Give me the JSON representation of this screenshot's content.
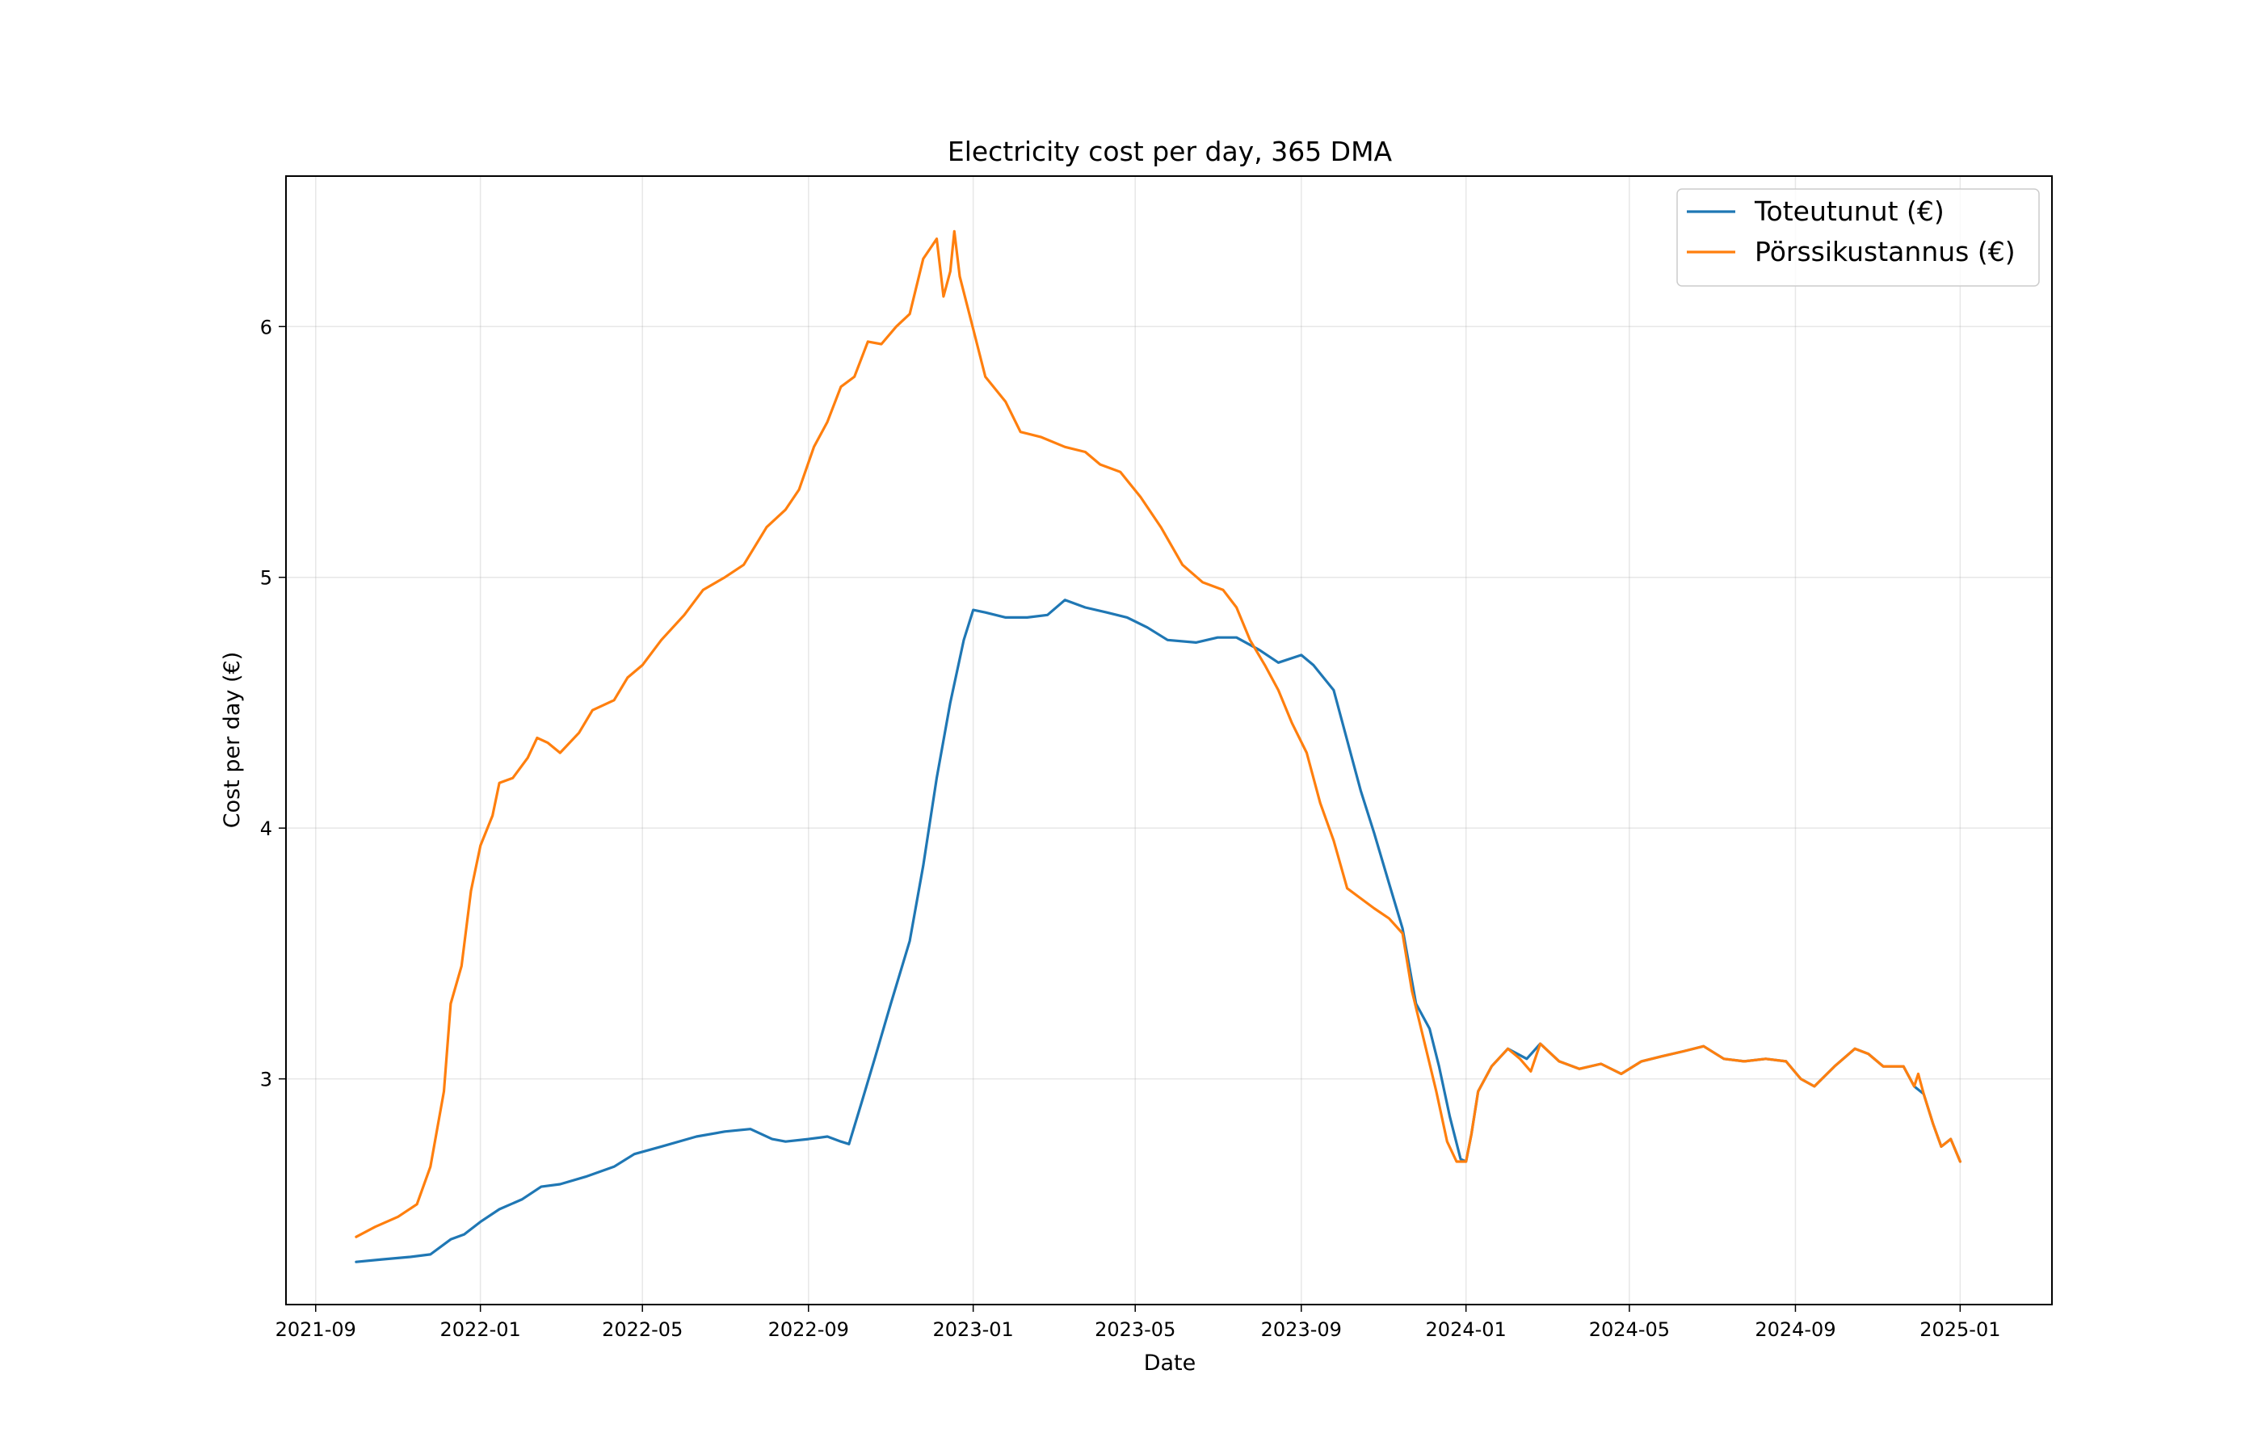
{
  "chart_data": {
    "type": "line",
    "title": "Electricity cost per day, 365 DMA",
    "xlabel": "Date",
    "ylabel": "Cost per day (€)",
    "x_ticks": [
      "2021-09",
      "2022-01",
      "2022-05",
      "2022-09",
      "2023-01",
      "2023-05",
      "2023-09",
      "2024-01",
      "2024-05",
      "2024-09",
      "2025-01"
    ],
    "y_ticks": [
      3,
      4,
      5,
      6
    ],
    "xlim": [
      "2021-08-10",
      "2025-03-10"
    ],
    "ylim": [
      2.1,
      6.6
    ],
    "grid": true,
    "legend_position": "top-right",
    "series": [
      {
        "name": "Toteutunut (€)",
        "color": "#1f77b4",
        "points": [
          [
            "2021-10-01",
            2.27
          ],
          [
            "2021-10-20",
            2.28
          ],
          [
            "2021-11-10",
            2.29
          ],
          [
            "2021-11-25",
            2.3
          ],
          [
            "2021-12-10",
            2.36
          ],
          [
            "2021-12-20",
            2.38
          ],
          [
            "2022-01-01",
            2.43
          ],
          [
            "2022-01-15",
            2.48
          ],
          [
            "2022-02-01",
            2.52
          ],
          [
            "2022-02-15",
            2.57
          ],
          [
            "2022-03-01",
            2.58
          ],
          [
            "2022-03-20",
            2.61
          ],
          [
            "2022-04-10",
            2.65
          ],
          [
            "2022-04-25",
            2.7
          ],
          [
            "2022-05-15",
            2.73
          ],
          [
            "2022-06-10",
            2.77
          ],
          [
            "2022-07-01",
            2.79
          ],
          [
            "2022-07-20",
            2.8
          ],
          [
            "2022-08-05",
            2.76
          ],
          [
            "2022-08-15",
            2.75
          ],
          [
            "2022-09-01",
            2.76
          ],
          [
            "2022-09-15",
            2.77
          ],
          [
            "2022-09-25",
            2.75
          ],
          [
            "2022-10-01",
            2.74
          ],
          [
            "2022-10-10",
            2.9
          ],
          [
            "2022-10-20",
            3.08
          ],
          [
            "2022-11-01",
            3.3
          ],
          [
            "2022-11-15",
            3.55
          ],
          [
            "2022-11-25",
            3.85
          ],
          [
            "2022-12-05",
            4.2
          ],
          [
            "2022-12-15",
            4.5
          ],
          [
            "2022-12-25",
            4.75
          ],
          [
            "2023-01-01",
            4.87
          ],
          [
            "2023-01-10",
            4.86
          ],
          [
            "2023-01-25",
            4.84
          ],
          [
            "2023-02-10",
            4.84
          ],
          [
            "2023-02-25",
            4.85
          ],
          [
            "2023-03-10",
            4.91
          ],
          [
            "2023-03-25",
            4.88
          ],
          [
            "2023-04-10",
            4.86
          ],
          [
            "2023-04-25",
            4.84
          ],
          [
            "2023-05-10",
            4.8
          ],
          [
            "2023-05-25",
            4.75
          ],
          [
            "2023-06-15",
            4.74
          ],
          [
            "2023-07-01",
            4.76
          ],
          [
            "2023-07-15",
            4.76
          ],
          [
            "2023-08-01",
            4.71
          ],
          [
            "2023-08-15",
            4.66
          ],
          [
            "2023-09-01",
            4.69
          ],
          [
            "2023-09-10",
            4.65
          ],
          [
            "2023-09-25",
            4.55
          ],
          [
            "2023-10-05",
            4.35
          ],
          [
            "2023-10-15",
            4.15
          ],
          [
            "2023-10-25",
            3.98
          ],
          [
            "2023-11-05",
            3.78
          ],
          [
            "2023-11-15",
            3.6
          ],
          [
            "2023-11-25",
            3.3
          ],
          [
            "2023-12-05",
            3.2
          ],
          [
            "2023-12-12",
            3.05
          ],
          [
            "2023-12-20",
            2.85
          ],
          [
            "2023-12-28",
            2.68
          ],
          [
            "2024-01-01",
            2.67
          ],
          [
            "2024-01-05",
            2.78
          ],
          [
            "2024-01-10",
            2.95
          ],
          [
            "2024-01-20",
            3.05
          ],
          [
            "2024-02-01",
            3.12
          ],
          [
            "2024-02-15",
            3.08
          ],
          [
            "2024-02-25",
            3.14
          ],
          [
            "2024-03-10",
            3.07
          ],
          [
            "2024-03-25",
            3.04
          ],
          [
            "2024-04-10",
            3.06
          ],
          [
            "2024-04-25",
            3.02
          ],
          [
            "2024-05-10",
            3.07
          ],
          [
            "2024-05-25",
            3.09
          ],
          [
            "2024-06-10",
            3.11
          ],
          [
            "2024-06-25",
            3.13
          ],
          [
            "2024-07-10",
            3.08
          ],
          [
            "2024-07-25",
            3.07
          ],
          [
            "2024-08-10",
            3.08
          ],
          [
            "2024-08-25",
            3.07
          ],
          [
            "2024-09-05",
            3.0
          ],
          [
            "2024-09-15",
            2.97
          ],
          [
            "2024-09-30",
            3.05
          ],
          [
            "2024-10-15",
            3.12
          ],
          [
            "2024-10-25",
            3.1
          ],
          [
            "2024-11-05",
            3.05
          ],
          [
            "2024-11-20",
            3.05
          ],
          [
            "2024-11-28",
            2.97
          ],
          [
            "2024-12-05",
            2.94
          ],
          [
            "2024-12-12",
            2.82
          ],
          [
            "2024-12-18",
            2.73
          ],
          [
            "2024-12-25",
            2.76
          ],
          [
            "2025-01-01",
            2.67
          ]
        ]
      },
      {
        "name": "Pörssikustannus (€)",
        "color": "#ff7f0e",
        "points": [
          [
            "2021-10-01",
            2.37
          ],
          [
            "2021-10-15",
            2.41
          ],
          [
            "2021-11-01",
            2.45
          ],
          [
            "2021-11-15",
            2.5
          ],
          [
            "2021-11-25",
            2.65
          ],
          [
            "2021-12-05",
            2.95
          ],
          [
            "2021-12-10",
            3.3
          ],
          [
            "2021-12-18",
            3.45
          ],
          [
            "2021-12-25",
            3.75
          ],
          [
            "2022-01-01",
            3.93
          ],
          [
            "2022-01-10",
            4.05
          ],
          [
            "2022-01-15",
            4.18
          ],
          [
            "2022-01-25",
            4.2
          ],
          [
            "2022-02-05",
            4.28
          ],
          [
            "2022-02-12",
            4.36
          ],
          [
            "2022-02-20",
            4.34
          ],
          [
            "2022-03-01",
            4.3
          ],
          [
            "2022-03-15",
            4.38
          ],
          [
            "2022-03-25",
            4.47
          ],
          [
            "2022-04-10",
            4.51
          ],
          [
            "2022-04-20",
            4.6
          ],
          [
            "2022-05-01",
            4.65
          ],
          [
            "2022-05-15",
            4.75
          ],
          [
            "2022-06-01",
            4.85
          ],
          [
            "2022-06-15",
            4.95
          ],
          [
            "2022-07-01",
            5.0
          ],
          [
            "2022-07-15",
            5.05
          ],
          [
            "2022-08-01",
            5.2
          ],
          [
            "2022-08-15",
            5.27
          ],
          [
            "2022-08-25",
            5.35
          ],
          [
            "2022-09-05",
            5.52
          ],
          [
            "2022-09-15",
            5.62
          ],
          [
            "2022-09-25",
            5.76
          ],
          [
            "2022-10-05",
            5.8
          ],
          [
            "2022-10-15",
            5.94
          ],
          [
            "2022-10-25",
            5.93
          ],
          [
            "2022-11-05",
            6.0
          ],
          [
            "2022-11-15",
            6.05
          ],
          [
            "2022-11-25",
            6.27
          ],
          [
            "2022-12-05",
            6.35
          ],
          [
            "2022-12-10",
            6.12
          ],
          [
            "2022-12-15",
            6.22
          ],
          [
            "2022-12-18",
            6.38
          ],
          [
            "2022-12-22",
            6.2
          ],
          [
            "2023-01-01",
            5.99
          ],
          [
            "2023-01-10",
            5.8
          ],
          [
            "2023-01-25",
            5.7
          ],
          [
            "2023-02-05",
            5.58
          ],
          [
            "2023-02-20",
            5.56
          ],
          [
            "2023-03-10",
            5.52
          ],
          [
            "2023-03-25",
            5.5
          ],
          [
            "2023-04-05",
            5.45
          ],
          [
            "2023-04-20",
            5.42
          ],
          [
            "2023-05-05",
            5.32
          ],
          [
            "2023-05-20",
            5.2
          ],
          [
            "2023-06-05",
            5.05
          ],
          [
            "2023-06-20",
            4.98
          ],
          [
            "2023-07-05",
            4.95
          ],
          [
            "2023-07-15",
            4.88
          ],
          [
            "2023-07-25",
            4.75
          ],
          [
            "2023-08-05",
            4.65
          ],
          [
            "2023-08-15",
            4.55
          ],
          [
            "2023-08-25",
            4.42
          ],
          [
            "2023-09-05",
            4.3
          ],
          [
            "2023-09-15",
            4.1
          ],
          [
            "2023-09-25",
            3.95
          ],
          [
            "2023-10-05",
            3.76
          ],
          [
            "2023-10-15",
            3.72
          ],
          [
            "2023-10-25",
            3.68
          ],
          [
            "2023-11-05",
            3.64
          ],
          [
            "2023-11-15",
            3.58
          ],
          [
            "2023-11-22",
            3.35
          ],
          [
            "2023-12-01",
            3.15
          ],
          [
            "2023-12-10",
            2.95
          ],
          [
            "2023-12-18",
            2.75
          ],
          [
            "2023-12-25",
            2.67
          ],
          [
            "2024-01-01",
            2.67
          ],
          [
            "2024-01-05",
            2.78
          ],
          [
            "2024-01-10",
            2.95
          ],
          [
            "2024-01-20",
            3.05
          ],
          [
            "2024-02-01",
            3.12
          ],
          [
            "2024-02-10",
            3.08
          ],
          [
            "2024-02-18",
            3.03
          ],
          [
            "2024-02-25",
            3.14
          ],
          [
            "2024-03-10",
            3.07
          ],
          [
            "2024-03-25",
            3.04
          ],
          [
            "2024-04-10",
            3.06
          ],
          [
            "2024-04-25",
            3.02
          ],
          [
            "2024-05-10",
            3.07
          ],
          [
            "2024-05-25",
            3.09
          ],
          [
            "2024-06-10",
            3.11
          ],
          [
            "2024-06-25",
            3.13
          ],
          [
            "2024-07-10",
            3.08
          ],
          [
            "2024-07-25",
            3.07
          ],
          [
            "2024-08-10",
            3.08
          ],
          [
            "2024-08-25",
            3.07
          ],
          [
            "2024-09-05",
            3.0
          ],
          [
            "2024-09-15",
            2.97
          ],
          [
            "2024-09-30",
            3.05
          ],
          [
            "2024-10-15",
            3.12
          ],
          [
            "2024-10-25",
            3.1
          ],
          [
            "2024-11-05",
            3.05
          ],
          [
            "2024-11-20",
            3.05
          ],
          [
            "2024-11-28",
            2.97
          ],
          [
            "2024-12-01",
            3.02
          ],
          [
            "2024-12-05",
            2.94
          ],
          [
            "2024-12-12",
            2.82
          ],
          [
            "2024-12-18",
            2.73
          ],
          [
            "2024-12-25",
            2.76
          ],
          [
            "2025-01-01",
            2.67
          ]
        ]
      }
    ]
  }
}
